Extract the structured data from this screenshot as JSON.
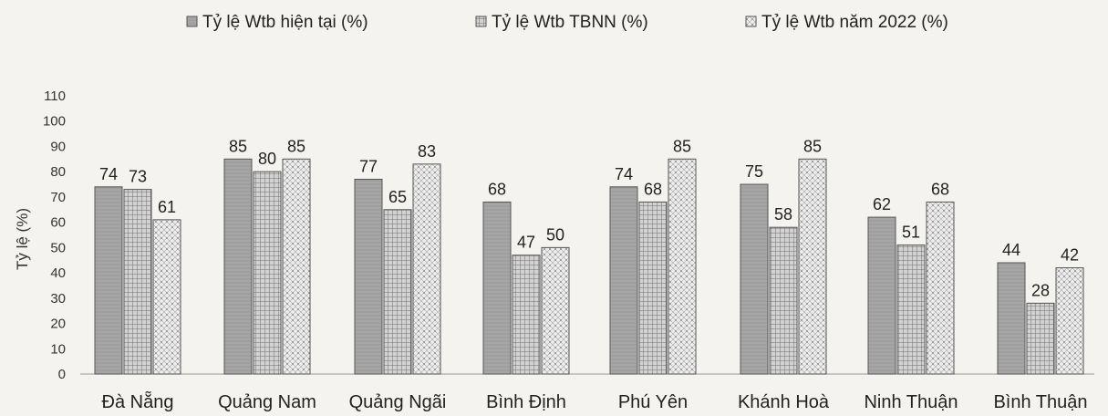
{
  "chart_data": {
    "type": "bar",
    "ylabel": "Tỷ lệ (%)",
    "ylim": [
      0,
      110
    ],
    "yticks": [
      0,
      10,
      20,
      30,
      40,
      50,
      60,
      70,
      80,
      90,
      100,
      110
    ],
    "legend_position": "top",
    "grid": false,
    "categories": [
      "Đà Nẵng",
      "Quảng Nam",
      "Quảng Ngãi",
      "Bình Định",
      "Phú Yên",
      "Khánh Hoà",
      "Ninh Thuận",
      "Bình Thuận"
    ],
    "series": [
      {
        "name": "Tỷ lệ Wtb hiện tại (%)",
        "values": [
          74,
          85,
          77,
          68,
          74,
          75,
          62,
          44
        ],
        "color": "#a9a9a9",
        "pattern": "solid"
      },
      {
        "name": "Tỷ lệ Wtb TBNN (%)",
        "values": [
          73,
          80,
          65,
          47,
          68,
          58,
          51,
          28
        ],
        "color": "#bdbdbd",
        "pattern": "grid"
      },
      {
        "name": "Tỷ lệ Wtb năm 2022 (%)",
        "values": [
          61,
          85,
          83,
          50,
          85,
          85,
          68,
          42
        ],
        "color": "#e4e4e4",
        "pattern": "dots"
      }
    ]
  }
}
